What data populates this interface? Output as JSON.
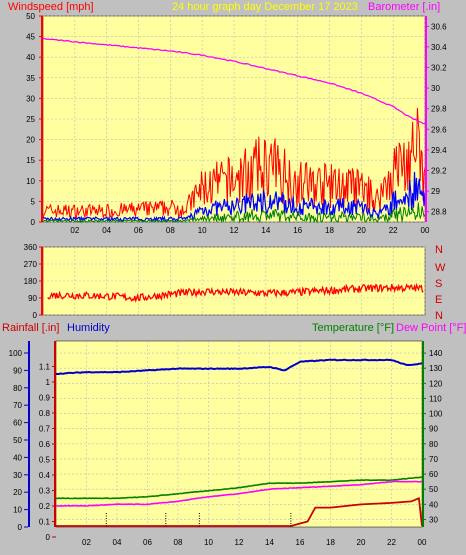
{
  "header": {
    "windspeed_label": "Windspeed [mph]",
    "title": "24 hour graph day   December 17 2023",
    "barometer_label": "Barometer [.in]"
  },
  "direction_labels": [
    "N",
    "W",
    "S",
    "E",
    "N"
  ],
  "lower_header": {
    "rainfall_label": "Rainfall [.in]",
    "humidity_label": "Humidity",
    "temperature_label": "Temperature [°F]",
    "dewpoint_label": "Dew Point [°F]"
  },
  "colors": {
    "plot_bg": "#ffffa0",
    "frame": "#c0c0c0",
    "gust": "#ff0000",
    "wind_avg": "#0000ff",
    "wind_low": "#008000",
    "barometer": "#ff00ff",
    "direction": "#ff0000",
    "humidity": "#0000cc",
    "temperature": "#008000",
    "dewpoint": "#ff00ff",
    "rainfall": "#cc0000",
    "title": "#ffff00"
  },
  "chart_data": [
    {
      "type": "line",
      "name": "wind-barometer",
      "x_ticks": [
        "02",
        "04",
        "06",
        "08",
        "10",
        "12",
        "14",
        "16",
        "18",
        "20",
        "22",
        "00"
      ],
      "y_left_ticks": [
        "0",
        "5",
        "10",
        "15",
        "20",
        "25",
        "30",
        "35",
        "40",
        "45",
        "50"
      ],
      "y_left_range": [
        0,
        50
      ],
      "y_right_ticks": [
        "28.8",
        "29",
        "29.2",
        "29.4",
        "29.6",
        "29.8",
        "30",
        "30.2",
        "30.4",
        "30.6"
      ],
      "y_right_range": [
        28.7,
        30.7
      ],
      "gust_envelope": {
        "x": [
          0,
          4,
          8,
          9,
          10,
          12,
          14,
          15,
          16,
          18,
          20,
          21,
          22,
          23,
          23.5,
          24
        ],
        "y": [
          4,
          4,
          5,
          5,
          12,
          15,
          20,
          18,
          14,
          13,
          12,
          8,
          18,
          22,
          26,
          14
        ]
      },
      "avg_envelope": {
        "x": [
          0,
          4,
          8,
          9,
          10,
          12,
          14,
          15,
          16,
          18,
          20,
          21,
          22,
          23,
          23.5,
          24
        ],
        "y": [
          1,
          1,
          1,
          1,
          4,
          5,
          7,
          6,
          5,
          5,
          5,
          2,
          6,
          9,
          11,
          6
        ]
      },
      "barometer": {
        "x": [
          0,
          2,
          4,
          6,
          8,
          10,
          12,
          14,
          16,
          18,
          20,
          22,
          23,
          24
        ],
        "y": [
          30.48,
          30.45,
          30.42,
          30.39,
          30.36,
          30.32,
          30.26,
          30.19,
          30.12,
          30.05,
          29.95,
          29.82,
          29.72,
          29.65
        ]
      },
      "grid": true
    },
    {
      "type": "line",
      "name": "wind-direction",
      "y_ticks": [
        "360",
        "270",
        "180",
        "90",
        "0"
      ],
      "y_range": [
        0,
        360
      ],
      "direction": {
        "x": [
          0,
          2,
          4,
          6,
          8,
          10,
          12,
          14,
          16,
          18,
          20,
          22,
          24
        ],
        "y": [
          105,
          105,
          100,
          90,
          110,
          125,
          120,
          115,
          120,
          130,
          140,
          145,
          140
        ]
      },
      "grid": true
    },
    {
      "type": "line",
      "name": "rain-humidity-temp",
      "x_ticks": [
        "02",
        "04",
        "06",
        "08",
        "10",
        "12",
        "14",
        "16",
        "18",
        "20",
        "22",
        "00"
      ],
      "y_left_rain_ticks": [
        "0",
        "0.1",
        "0.2",
        "0.3",
        "0.4",
        "0.5",
        "0.6",
        "0.7",
        "0.8",
        "0.9",
        "1",
        "1.1"
      ],
      "y_left_rain_range": [
        0,
        1.2
      ],
      "y_left_hum_ticks": [
        "0",
        "10",
        "20",
        "30",
        "40",
        "50",
        "60",
        "70",
        "80",
        "90",
        "100"
      ],
      "y_left_hum_range": [
        0,
        100
      ],
      "y_right_ticks": [
        "30",
        "40",
        "50",
        "60",
        "70",
        "80",
        "90",
        "100",
        "110",
        "120",
        "130",
        "140"
      ],
      "y_right_range": [
        25,
        148
      ],
      "humidity": {
        "x": [
          0,
          2,
          4,
          6,
          8,
          10,
          12,
          14,
          15,
          16,
          18,
          20,
          22,
          23,
          24
        ],
        "y": [
          88,
          89,
          89,
          90,
          91,
          91,
          91,
          92,
          90,
          95,
          96,
          96,
          96,
          93,
          94
        ]
      },
      "temperature": {
        "x": [
          0,
          2,
          4,
          6,
          8,
          10,
          12,
          14,
          16,
          18,
          20,
          22,
          24
        ],
        "y": [
          44,
          44,
          44,
          45,
          47,
          49,
          51,
          54,
          54,
          55,
          56,
          56,
          58
        ]
      },
      "dewpoint": {
        "x": [
          0,
          2,
          4,
          6,
          8,
          10,
          12,
          14,
          16,
          18,
          20,
          22,
          24
        ],
        "y": [
          39,
          39,
          40,
          40,
          42,
          45,
          47,
          50,
          51,
          52,
          53,
          55,
          55
        ]
      },
      "rainfall": {
        "x": [
          0,
          15.4,
          16.5,
          17.0,
          18,
          20,
          22,
          23.3,
          23.8,
          24
        ],
        "y": [
          0,
          0,
          0.1,
          0.19,
          0.19,
          0.21,
          0.22,
          0.23,
          0.25,
          0
        ]
      },
      "grid": true
    }
  ]
}
